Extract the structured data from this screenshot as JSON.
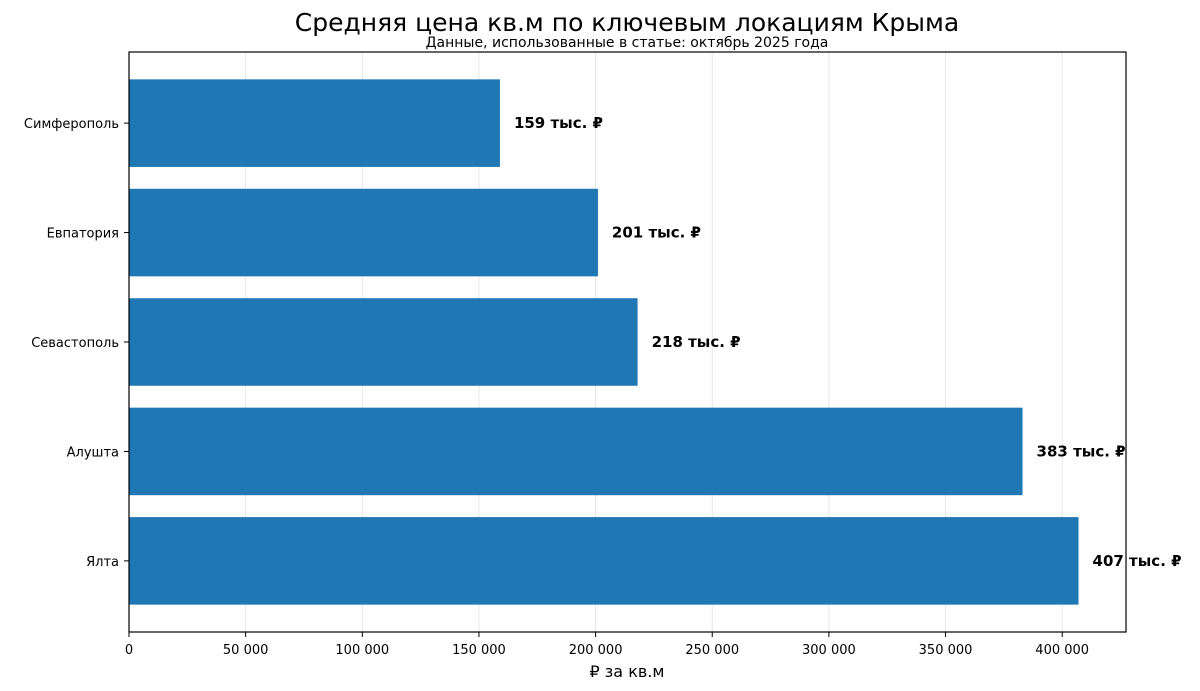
{
  "chart_data": {
    "type": "bar",
    "orientation": "horizontal",
    "title": "Средняя цена кв.м по ключевым локациям Крыма",
    "subtitle": "Данные, использованные в статье: октябрь 2025 года",
    "xlabel": "₽ за кв.м",
    "ylabel": "",
    "categories": [
      "Симферополь",
      "Евпатория",
      "Севастополь",
      "Алушта",
      "Ялта"
    ],
    "values": [
      159000,
      201000,
      218000,
      383000,
      407000
    ],
    "data_labels": [
      "159 тыс. ₽",
      "201 тыс. ₽",
      "218 тыс. ₽",
      "383 тыс. ₽",
      "407 тыс. ₽"
    ],
    "xlim": [
      0,
      427350
    ],
    "x_ticks": [
      0,
      50000,
      100000,
      150000,
      200000,
      250000,
      300000,
      350000,
      400000
    ],
    "x_tick_labels": [
      "0",
      "50 000",
      "100 000",
      "150 000",
      "200 000",
      "250 000",
      "300 000",
      "350 000",
      "400 000"
    ],
    "bar_color": "#1f77b4",
    "grid": "vertical",
    "legend": "none"
  }
}
